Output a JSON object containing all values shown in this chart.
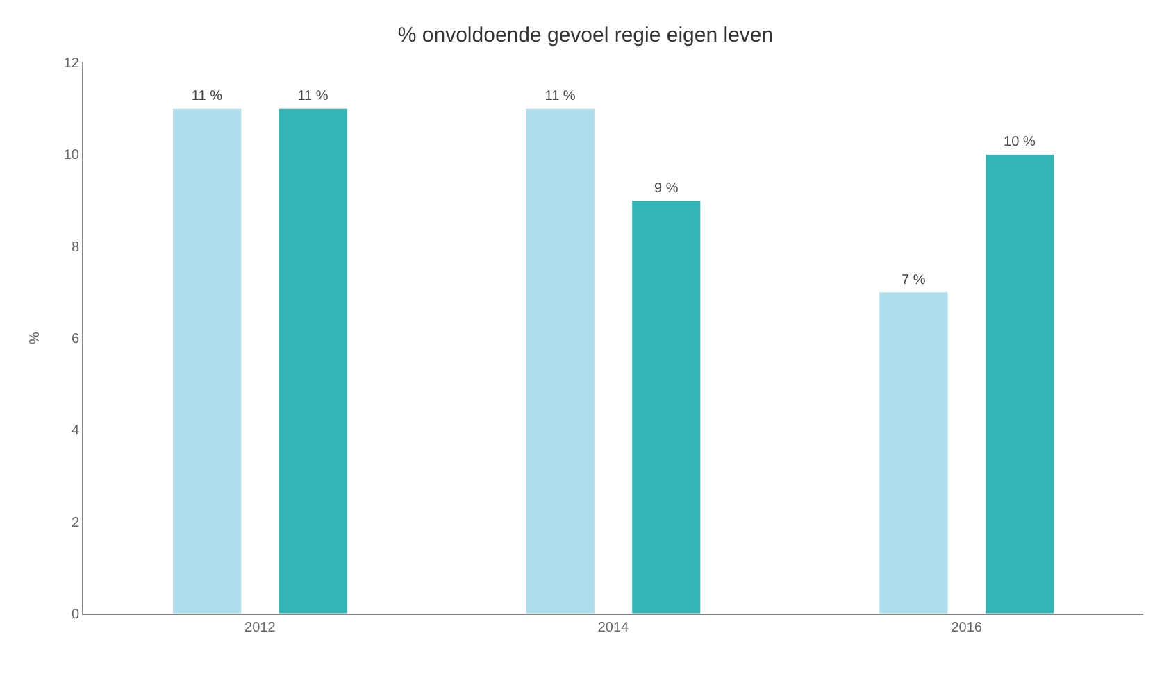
{
  "chart_data": {
    "type": "bar",
    "title": "% onvoldoende gevoel regie eigen leven",
    "ylabel": "%",
    "categories": [
      "2012",
      "2014",
      "2016"
    ],
    "series": [
      {
        "color": "#addcea",
        "values": [
          11,
          11,
          7
        ],
        "value_labels": [
          "11 %",
          "11 %",
          "7 %"
        ]
      },
      {
        "color": "#33b5b8",
        "values": [
          11,
          9,
          10
        ],
        "value_labels": [
          "11 %",
          "9 %",
          "10 %"
        ]
      }
    ],
    "ylim": [
      0,
      12
    ],
    "yticks": [
      0,
      2,
      4,
      6,
      8,
      10,
      12
    ],
    "grid": false
  }
}
